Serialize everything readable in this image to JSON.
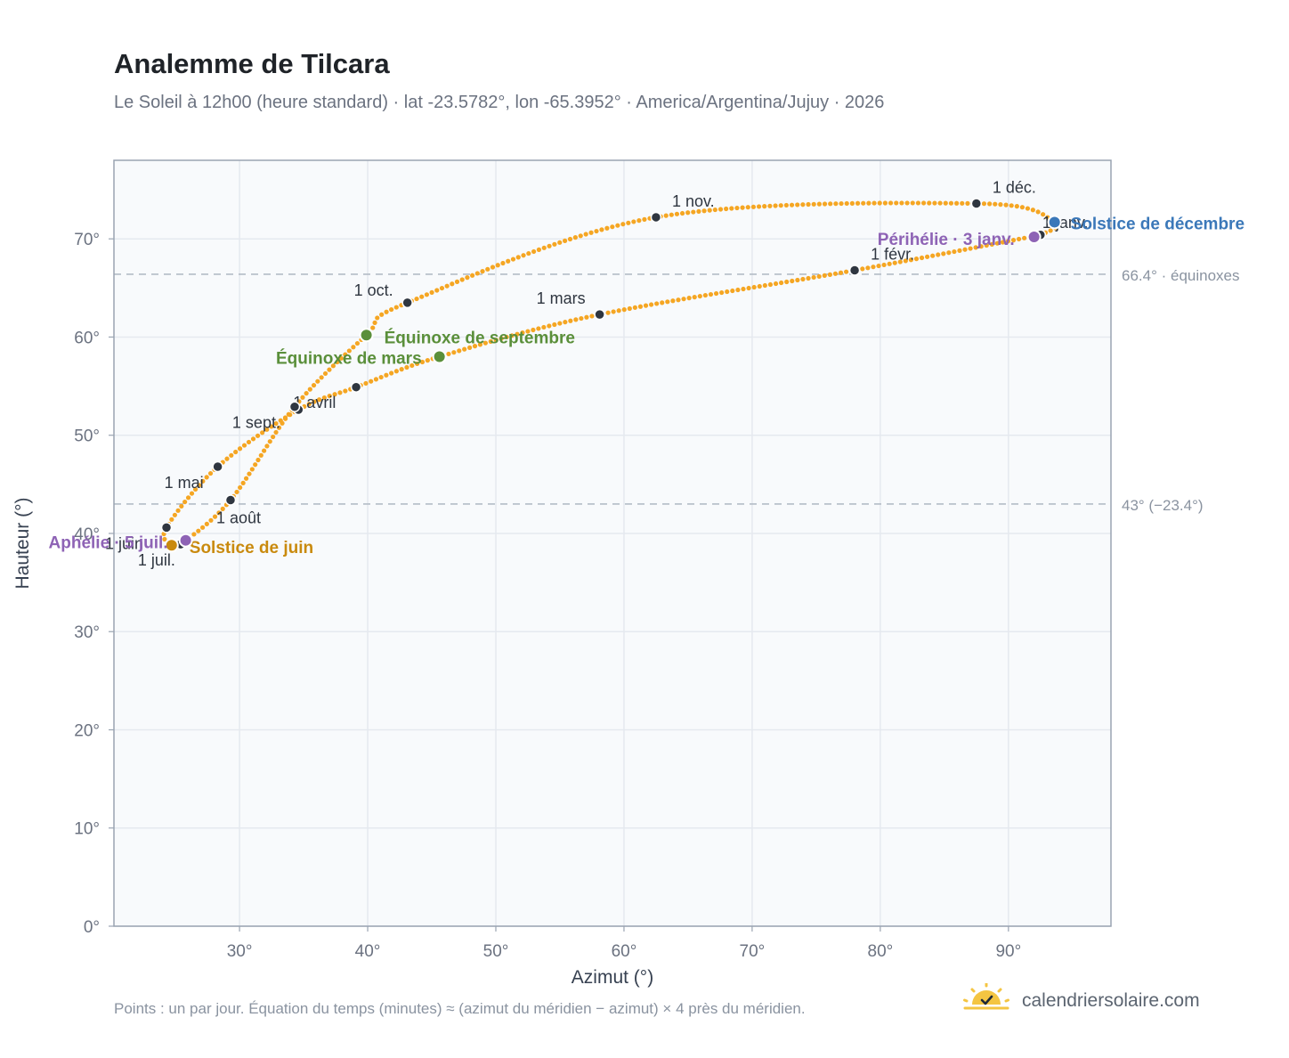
{
  "header": {
    "title": "Analemme de Tilcara",
    "subtitle": "Le Soleil à 12h00 (heure standard) · lat -23.5782°, lon -65.3952° · America/Argentina/Jujuy · 2026"
  },
  "footer": {
    "note": "Points : un par jour. Équation du temps (minutes) ≈ (azimut du méridien − azimut) × 4 près du méridien.",
    "brand": "calendriersolaire.com",
    "brand_icon": "sun-logo-icon"
  },
  "colors": {
    "curve": "#f5a623",
    "month_marker": "#2f3640",
    "equinox": "#5a8f3a",
    "june_solstice": "#c98a0e",
    "december_solstice": "#3b78b9",
    "apsis": "#8e63b5",
    "reference_line": "#b4bcc6",
    "plot_bg": "#f8fafc",
    "grid": "#e5e9ef",
    "frame": "#9aa4b2"
  },
  "chart_data": {
    "type": "scatter",
    "xlabel": "Azimut (°)",
    "ylabel": "Hauteur (°)",
    "xlim": [
      20.2,
      98
    ],
    "ylim": [
      0,
      78
    ],
    "x_ticks": [
      30,
      40,
      50,
      60,
      70,
      80,
      90
    ],
    "x_tick_labels": [
      "30°",
      "40°",
      "50°",
      "60°",
      "70°",
      "80°",
      "90°"
    ],
    "y_ticks": [
      0,
      10,
      20,
      30,
      40,
      50,
      60,
      70
    ],
    "y_tick_labels": [
      "0°",
      "10°",
      "20°",
      "30°",
      "40°",
      "50°",
      "60°",
      "70°"
    ],
    "grid": true,
    "reference_lines": [
      {
        "y": 66.4,
        "label": "66.4° · équinoxes"
      },
      {
        "y": 43.0,
        "label": "43° (−23.4°)"
      }
    ],
    "path_nodes": [
      {
        "azimuth": 92.5,
        "altitude": 70.4,
        "label": "1 janv."
      },
      {
        "azimuth": 78.0,
        "altitude": 66.8,
        "label": "1 févr."
      },
      {
        "azimuth": 58.1,
        "altitude": 62.3,
        "label": "1 mars"
      },
      {
        "azimuth": 45.6,
        "altitude": 58.0
      },
      {
        "azimuth": 39.1,
        "altitude": 54.9
      },
      {
        "azimuth": 34.6,
        "altitude": 52.6,
        "label": "1 avril"
      },
      {
        "azimuth": 28.3,
        "altitude": 46.8,
        "label": "1 mai"
      },
      {
        "azimuth": 24.3,
        "altitude": 40.6,
        "label": "1 juin"
      },
      {
        "azimuth": 24.7,
        "altitude": 38.8
      },
      {
        "azimuth": 25.4,
        "altitude": 38.9,
        "label": "1 juil."
      },
      {
        "azimuth": 29.3,
        "altitude": 43.4,
        "label": "1 août"
      },
      {
        "azimuth": 34.3,
        "altitude": 52.9,
        "label": "1 sept."
      },
      {
        "azimuth": 39.9,
        "altitude": 60.2
      },
      {
        "azimuth": 43.1,
        "altitude": 63.5,
        "label": "1 oct."
      },
      {
        "azimuth": 62.5,
        "altitude": 72.2,
        "label": "1 nov."
      },
      {
        "azimuth": 87.5,
        "altitude": 73.6,
        "label": "1 déc."
      },
      {
        "azimuth": 93.6,
        "altitude": 71.7
      },
      {
        "azimuth": 92.5,
        "altitude": 70.4
      }
    ],
    "month_markers": [
      {
        "label": "1 janv.",
        "azimuth": 92.5,
        "altitude": 70.4
      },
      {
        "label": "1 févr.",
        "azimuth": 78.0,
        "altitude": 66.8
      },
      {
        "label": "1 mars",
        "azimuth": 58.1,
        "altitude": 62.3
      },
      {
        "label": "1 avril",
        "azimuth": 34.6,
        "altitude": 52.6
      },
      {
        "label": "1 mai",
        "azimuth": 28.3,
        "altitude": 46.8
      },
      {
        "label": "1 juin",
        "azimuth": 24.3,
        "altitude": 40.6
      },
      {
        "label": "1 juil.",
        "azimuth": 25.4,
        "altitude": 38.9
      },
      {
        "label": "1 août",
        "azimuth": 29.3,
        "altitude": 43.4
      },
      {
        "label": "1 sept.",
        "azimuth": 34.3,
        "altitude": 52.9
      },
      {
        "label": "1 oct.",
        "azimuth": 43.1,
        "altitude": 63.5
      },
      {
        "label": "1 nov.",
        "azimuth": 62.5,
        "altitude": 72.2
      },
      {
        "label": "1 déc.",
        "azimuth": 87.5,
        "altitude": 73.6
      },
      {
        "azimuth": 39.1,
        "altitude": 54.9
      }
    ],
    "events": [
      {
        "label": "Équinoxe de mars",
        "azimuth": 45.6,
        "altitude": 58.0,
        "color": "#5a8f3a"
      },
      {
        "label": "Équinoxe de septembre",
        "azimuth": 39.9,
        "altitude": 60.2,
        "color": "#5a8f3a"
      },
      {
        "label": "Solstice de juin",
        "azimuth": 24.7,
        "altitude": 38.8,
        "color": "#c98a0e"
      },
      {
        "label": "Solstice de décembre",
        "azimuth": 93.6,
        "altitude": 71.7,
        "color": "#3b78b9"
      },
      {
        "label": "Aphélie · 5 juil.",
        "azimuth": 25.8,
        "altitude": 39.3,
        "color": "#8e63b5"
      },
      {
        "label": "Périhélie · 3 janv.",
        "azimuth": 92.0,
        "altitude": 70.2,
        "color": "#8e63b5"
      }
    ]
  }
}
